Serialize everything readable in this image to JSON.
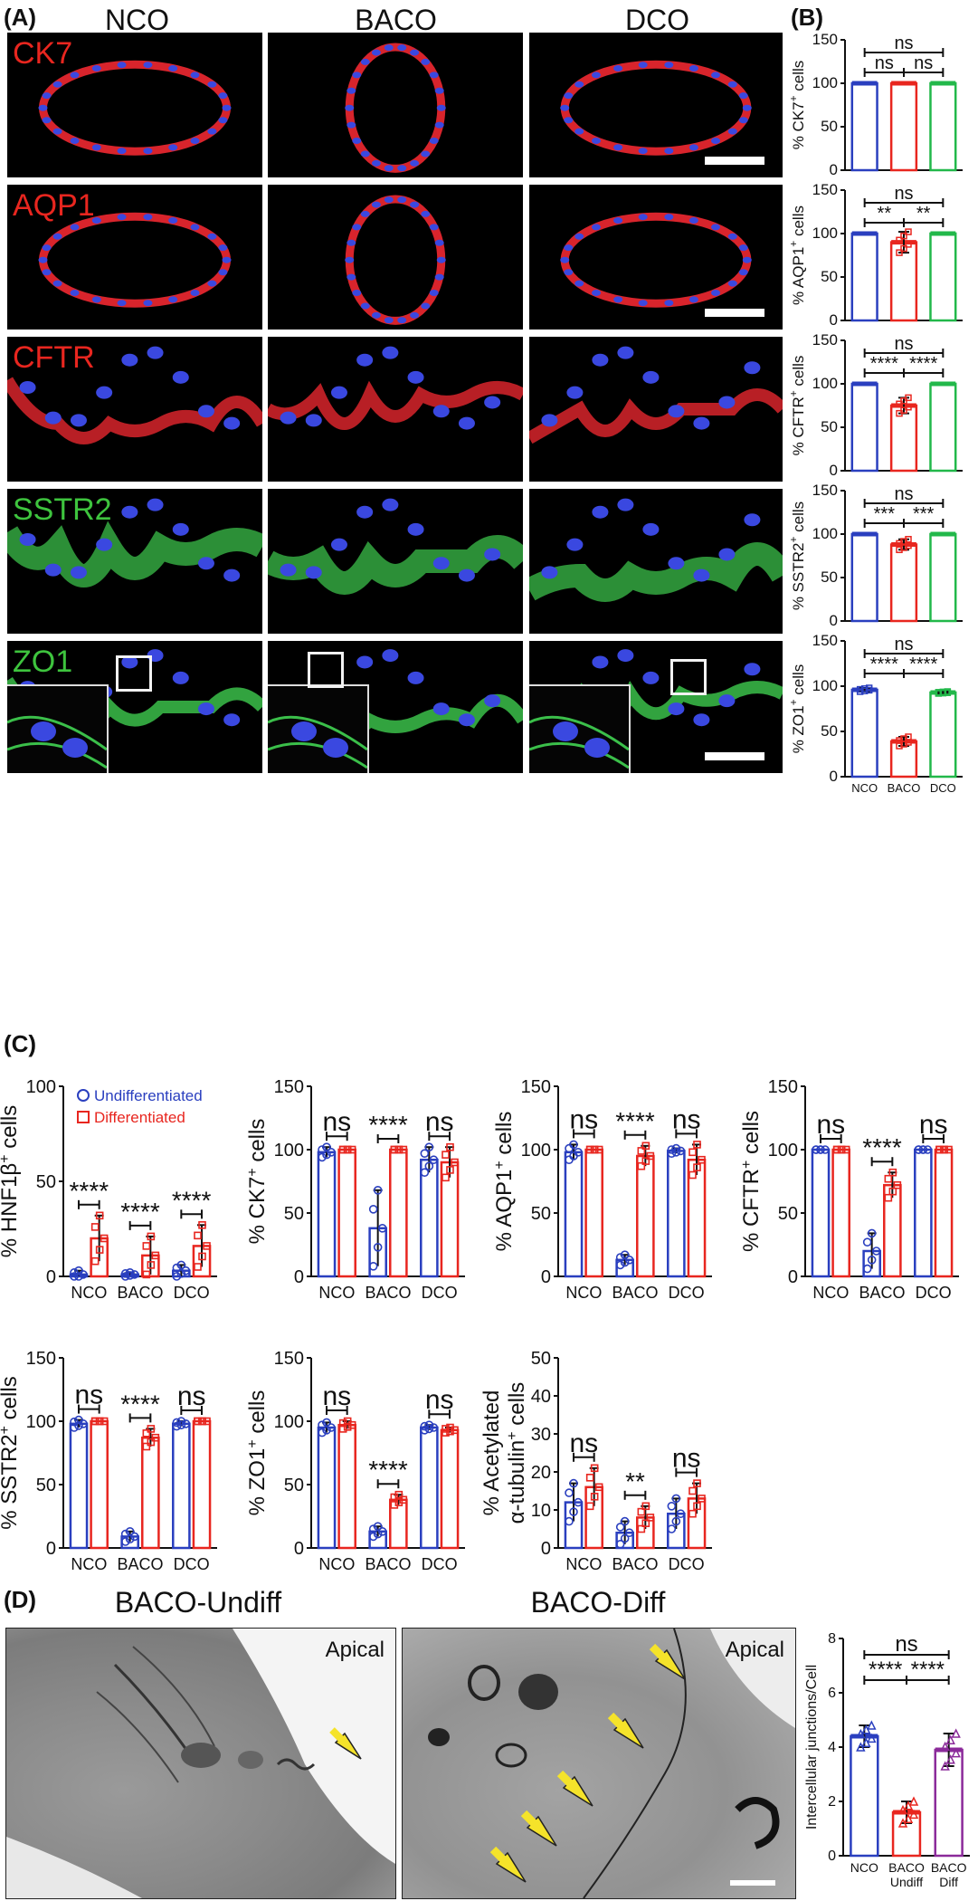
{
  "panels": {
    "A": "(A)",
    "B": "(B)",
    "C": "(C)",
    "D": "(D)"
  },
  "panelA": {
    "columns": [
      "NCO",
      "BACO",
      "DCO"
    ],
    "rows": [
      {
        "label": "CK7",
        "color": "red",
        "scalebar": true,
        "inset": false
      },
      {
        "label": "AQP1",
        "color": "red",
        "scalebar": true,
        "inset": false
      },
      {
        "label": "CFTR",
        "color": "red",
        "scalebar": false,
        "inset": false
      },
      {
        "label": "SSTR2",
        "color": "green",
        "scalebar": false,
        "inset": false
      },
      {
        "label": "ZO1",
        "color": "green",
        "scalebar": true,
        "inset": true
      }
    ]
  },
  "colors": {
    "blue": "#2a3fbf",
    "red": "#e8261f",
    "green": "#22b84a",
    "purple": "#8b2a9a",
    "black": "#111111"
  },
  "chart_data": [
    {
      "id": "B1",
      "type": "bar",
      "ylabel_main": "% CK7",
      "ylabel_sup": "+",
      "ylabel_post": " cells",
      "categories": [
        "NCO",
        "BACO",
        "DCO"
      ],
      "values": [
        100,
        100,
        100
      ],
      "errors": [
        0,
        0,
        0
      ],
      "ylim": [
        0,
        150
      ],
      "yticks": [
        0,
        50,
        100,
        150
      ],
      "sig": [
        {
          "from": 0,
          "to": 1,
          "text": "ns",
          "level": 0
        },
        {
          "from": 1,
          "to": 2,
          "text": "ns",
          "level": 0
        },
        {
          "from": 0,
          "to": 2,
          "text": "ns",
          "level": 1
        }
      ],
      "show_xticks": false
    },
    {
      "id": "B2",
      "type": "bar",
      "ylabel_main": "% AQP1",
      "ylabel_sup": "+",
      "ylabel_post": " cells",
      "categories": [
        "NCO",
        "BACO",
        "DCO"
      ],
      "values": [
        100,
        90,
        100
      ],
      "errors": [
        0,
        12,
        0
      ],
      "ylim": [
        0,
        150
      ],
      "yticks": [
        0,
        50,
        100,
        150
      ],
      "sig": [
        {
          "from": 0,
          "to": 1,
          "text": "**",
          "level": 0
        },
        {
          "from": 1,
          "to": 2,
          "text": "**",
          "level": 0
        },
        {
          "from": 0,
          "to": 2,
          "text": "ns",
          "level": 1
        }
      ],
      "show_xticks": false
    },
    {
      "id": "B3",
      "type": "bar",
      "ylabel_main": "% CFTR",
      "ylabel_sup": "+",
      "ylabel_post": " cells",
      "categories": [
        "NCO",
        "BACO",
        "DCO"
      ],
      "values": [
        100,
        75,
        100
      ],
      "errors": [
        0,
        9,
        0
      ],
      "ylim": [
        0,
        150
      ],
      "yticks": [
        0,
        50,
        100,
        150
      ],
      "sig": [
        {
          "from": 0,
          "to": 1,
          "text": "****",
          "level": 0
        },
        {
          "from": 1,
          "to": 2,
          "text": "****",
          "level": 0
        },
        {
          "from": 0,
          "to": 2,
          "text": "ns",
          "level": 1
        }
      ],
      "show_xticks": false
    },
    {
      "id": "B4",
      "type": "bar",
      "ylabel_main": "% SSTR2",
      "ylabel_sup": "+",
      "ylabel_post": " cells",
      "categories": [
        "NCO",
        "BACO",
        "DCO"
      ],
      "values": [
        100,
        88,
        100
      ],
      "errors": [
        0,
        6,
        0
      ],
      "ylim": [
        0,
        150
      ],
      "yticks": [
        0,
        50,
        100,
        150
      ],
      "sig": [
        {
          "from": 0,
          "to": 1,
          "text": "***",
          "level": 0
        },
        {
          "from": 1,
          "to": 2,
          "text": "***",
          "level": 0
        },
        {
          "from": 0,
          "to": 2,
          "text": "ns",
          "level": 1
        }
      ],
      "show_xticks": false
    },
    {
      "id": "B5",
      "type": "bar",
      "ylabel_main": "% ZO1",
      "ylabel_sup": "+",
      "ylabel_post": " cells",
      "categories": [
        "NCO",
        "BACO",
        "DCO"
      ],
      "values": [
        96,
        39,
        93
      ],
      "errors": [
        2,
        5,
        1
      ],
      "ylim": [
        0,
        150
      ],
      "yticks": [
        0,
        50,
        100,
        150
      ],
      "sig": [
        {
          "from": 0,
          "to": 1,
          "text": "****",
          "level": 0
        },
        {
          "from": 1,
          "to": 2,
          "text": "****",
          "level": 0
        },
        {
          "from": 0,
          "to": 2,
          "text": "ns",
          "level": 1
        }
      ],
      "show_xticks": true
    },
    {
      "id": "C1",
      "type": "bar",
      "ylabel_main": "% HNF1β",
      "ylabel_sup": "+",
      "ylabel_post": " cells",
      "categories": [
        "NCO",
        "BACO",
        "DCO"
      ],
      "legend": [
        "Undifferentiated",
        "Differentiated"
      ],
      "series": [
        {
          "name": "Undifferentiated",
          "values": [
            1,
            1,
            3
          ],
          "errors": [
            2,
            1,
            3
          ]
        },
        {
          "name": "Differentiated",
          "values": [
            20,
            11,
            16
          ],
          "errors": [
            12,
            10,
            11
          ]
        }
      ],
      "ylim": [
        0,
        100
      ],
      "yticks": [
        0,
        50,
        100
      ],
      "sig": [
        "****",
        "****",
        "****"
      ]
    },
    {
      "id": "C2",
      "type": "bar",
      "ylabel_main": "% CK7",
      "ylabel_sup": "+",
      "ylabel_post": " cells",
      "categories": [
        "NCO",
        "BACO",
        "DCO"
      ],
      "series": [
        {
          "name": "Undifferentiated",
          "values": [
            98,
            38,
            92
          ],
          "errors": [
            4,
            30,
            10
          ]
        },
        {
          "name": "Differentiated",
          "values": [
            100,
            100,
            90
          ],
          "errors": [
            0,
            0,
            12
          ]
        }
      ],
      "ylim": [
        0,
        150
      ],
      "yticks": [
        0,
        50,
        100,
        150
      ],
      "sig": [
        "ns",
        "****",
        "ns"
      ]
    },
    {
      "id": "C3",
      "type": "bar",
      "ylabel_main": "% AQP1",
      "ylabel_sup": "+",
      "ylabel_post": " cells",
      "categories": [
        "NCO",
        "BACO",
        "DCO"
      ],
      "series": [
        {
          "name": "Undifferentiated",
          "values": [
            98,
            13,
            99
          ],
          "errors": [
            6,
            4,
            2
          ]
        },
        {
          "name": "Differentiated",
          "values": [
            100,
            95,
            92
          ],
          "errors": [
            0,
            8,
            12
          ]
        }
      ],
      "ylim": [
        0,
        150
      ],
      "yticks": [
        0,
        50,
        100,
        150
      ],
      "sig": [
        "ns",
        "****",
        "ns"
      ]
    },
    {
      "id": "C4",
      "type": "bar",
      "ylabel_main": "% CFTR",
      "ylabel_sup": "+",
      "ylabel_post": " cells",
      "categories": [
        "NCO",
        "BACO",
        "DCO"
      ],
      "series": [
        {
          "name": "Undifferentiated",
          "values": [
            100,
            20,
            100
          ],
          "errors": [
            0,
            14,
            0
          ]
        },
        {
          "name": "Differentiated",
          "values": [
            100,
            72,
            100
          ],
          "errors": [
            0,
            10,
            0
          ]
        }
      ],
      "ylim": [
        0,
        150
      ],
      "yticks": [
        0,
        50,
        100,
        150
      ],
      "sig": [
        "ns",
        "****",
        "ns"
      ]
    },
    {
      "id": "C5",
      "type": "bar",
      "ylabel_main": "% SSTR2",
      "ylabel_sup": "+",
      "ylabel_post": " cells",
      "categories": [
        "NCO",
        "BACO",
        "DCO"
      ],
      "series": [
        {
          "name": "Undifferentiated",
          "values": [
            98,
            9,
            98
          ],
          "errors": [
            3,
            4,
            2
          ]
        },
        {
          "name": "Differentiated",
          "values": [
            100,
            87,
            100
          ],
          "errors": [
            0,
            7,
            0
          ]
        }
      ],
      "ylim": [
        0,
        150
      ],
      "yticks": [
        0,
        50,
        100,
        150
      ],
      "sig": [
        "ns",
        "****",
        "ns"
      ]
    },
    {
      "id": "C6",
      "type": "bar",
      "ylabel_main": "% ZO1",
      "ylabel_sup": "+",
      "ylabel_post": " cells",
      "categories": [
        "NCO",
        "BACO",
        "DCO"
      ],
      "series": [
        {
          "name": "Undifferentiated",
          "values": [
            95,
            13,
            95
          ],
          "errors": [
            4,
            4,
            2
          ]
        },
        {
          "name": "Differentiated",
          "values": [
            97,
            38,
            93
          ],
          "errors": [
            3,
            4,
            2
          ]
        }
      ],
      "ylim": [
        0,
        150
      ],
      "yticks": [
        0,
        50,
        100,
        150
      ],
      "sig": [
        "ns",
        "****",
        "ns"
      ]
    },
    {
      "id": "C7",
      "type": "bar",
      "ylabel_main": "% Acetylated",
      "ylabel_line2": "α-tubulin",
      "ylabel_sup": "+",
      "ylabel_post": " cells",
      "categories": [
        "NCO",
        "BACO",
        "DCO"
      ],
      "series": [
        {
          "name": "Undifferentiated",
          "values": [
            12,
            4,
            9
          ],
          "errors": [
            5,
            3,
            4
          ]
        },
        {
          "name": "Differentiated",
          "values": [
            16,
            8,
            13
          ],
          "errors": [
            5,
            3,
            4
          ]
        }
      ],
      "ylim": [
        0,
        50
      ],
      "yticks": [
        0,
        10,
        20,
        30,
        40,
        50
      ],
      "sig": [
        "ns",
        "**",
        "ns"
      ]
    },
    {
      "id": "D1",
      "type": "bar",
      "ylabel_main": "Intercellular junctions/Cell",
      "ylabel_sup": "",
      "ylabel_post": "",
      "categories": [
        "NCO",
        "BACO Undiff",
        "BACO Diff"
      ],
      "cat_lines": [
        [
          "NCO"
        ],
        [
          "BACO",
          "Undiff"
        ],
        [
          "BACO",
          "Diff"
        ]
      ],
      "values": [
        4.4,
        1.6,
        3.9
      ],
      "errors": [
        0.4,
        0.4,
        0.6
      ],
      "ylim": [
        0,
        8
      ],
      "yticks": [
        0,
        2,
        4,
        6,
        8
      ],
      "sig": [
        {
          "from": 0,
          "to": 1,
          "text": "****",
          "level": 0
        },
        {
          "from": 1,
          "to": 2,
          "text": "****",
          "level": 0
        },
        {
          "from": 0,
          "to": 2,
          "text": "ns",
          "level": 1
        }
      ],
      "show_xticks": true
    }
  ],
  "panelD": {
    "titles": [
      "BACO-Undiff",
      "BACO-Diff"
    ],
    "apical": "Apical"
  }
}
